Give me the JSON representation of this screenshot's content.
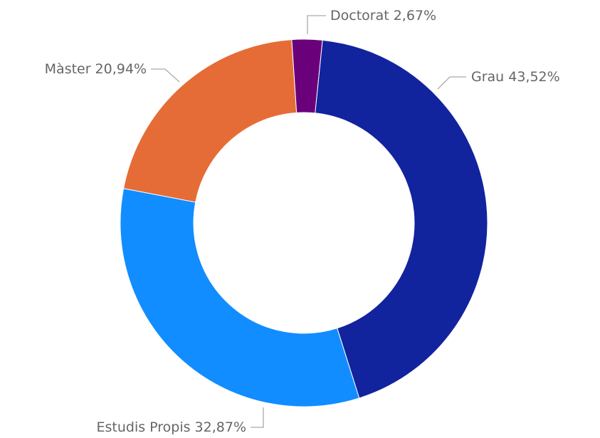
{
  "chart_data": {
    "type": "donut",
    "categories": [
      "Grau",
      "Estudis Propis",
      "Màster",
      "Doctorat"
    ],
    "values": [
      43.52,
      32.87,
      20.94,
      2.67
    ],
    "value_labels": [
      "43,52%",
      "32,87%",
      "20,94%",
      "2,67%"
    ],
    "colors": [
      "#12239e",
      "#118dff",
      "#e66c37",
      "#6b007b"
    ]
  }
}
